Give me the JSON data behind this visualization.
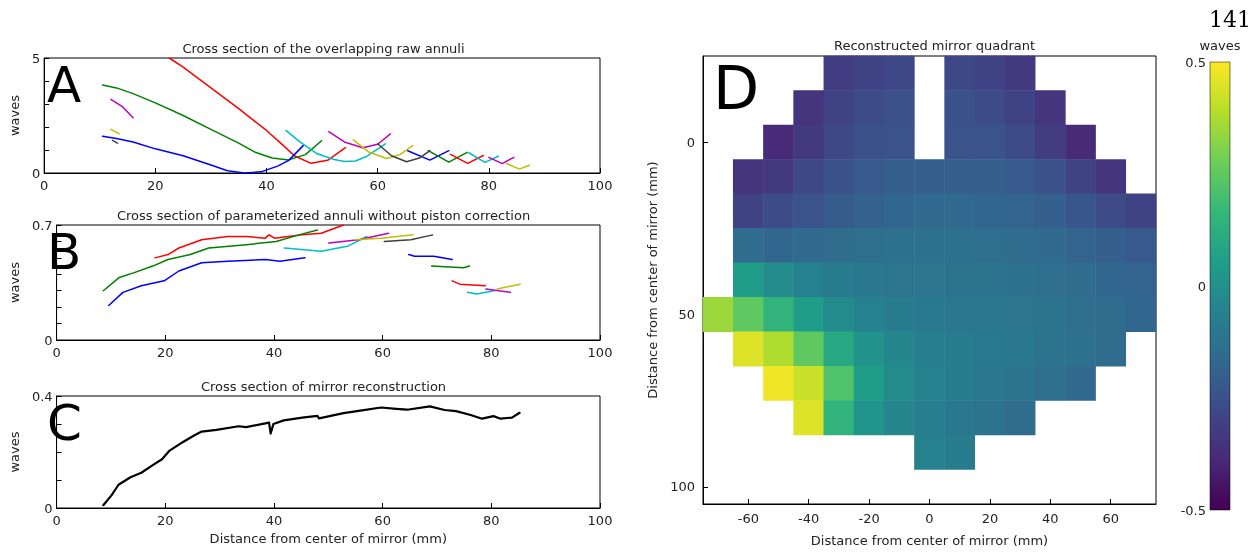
{
  "chart_data": [
    {
      "type": "line",
      "title": "Cross section of the overlapping raw annuli",
      "ylabel": "waves",
      "annotations": [
        "A"
      ],
      "marker": "none",
      "grid": false,
      "xlim": [
        0,
        100
      ],
      "xticks": [
        0,
        20,
        40,
        60,
        80,
        100
      ],
      "ylim": [
        0,
        5
      ],
      "yticks": [
        0,
        {
          "value": 1,
          "label": null
        },
        {
          "value": 2,
          "label": null
        },
        {
          "value": 3,
          "label": null
        },
        {
          "value": 4,
          "label": null
        },
        5
      ],
      "series": [
        {
          "color": "#ff0000",
          "x": [
            22.5,
            25,
            30,
            35,
            40,
            43,
            45,
            48,
            51,
            54.2
          ],
          "values": [
            5,
            4.6,
            3.7,
            2.8,
            1.85,
            1.2,
            0.75,
            0.42,
            0.55,
            1.1
          ]
        },
        {
          "color": "#008000",
          "x": [
            10.5,
            13,
            16,
            20,
            25,
            30,
            35,
            38,
            41,
            44,
            47,
            49.9
          ],
          "values": [
            3.83,
            3.7,
            3.45,
            3.05,
            2.5,
            1.9,
            1.3,
            0.9,
            0.65,
            0.57,
            0.8,
            1.4
          ]
        },
        {
          "color": "#0000ff",
          "x": [
            10.5,
            13,
            16,
            20,
            25,
            30,
            33,
            36,
            39,
            42,
            44,
            46.6
          ],
          "values": [
            1.6,
            1.5,
            1.35,
            1.05,
            0.75,
            0.35,
            0.1,
            0.0,
            0.05,
            0.3,
            0.55,
            1.19
          ]
        },
        {
          "color": "#bf00bf",
          "x": [
            12,
            14,
            16
          ],
          "values": [
            3.2,
            2.9,
            2.4
          ]
        },
        {
          "color": "#bfbf00",
          "x": [
            12,
            13.5
          ],
          "values": [
            1.9,
            1.7
          ]
        },
        {
          "color": "#00bfbf",
          "x": [
            43.5,
            46,
            49,
            52,
            54,
            56,
            58,
            61.4
          ],
          "values": [
            1.85,
            1.35,
            0.85,
            0.6,
            0.5,
            0.52,
            0.72,
            1.27
          ]
        },
        {
          "color": "#bf00bf",
          "x": [
            51.2,
            54,
            57.3,
            60,
            62.3
          ],
          "values": [
            1.8,
            1.35,
            1.1,
            1.25,
            1.7
          ]
        },
        {
          "color": "#bfbf00",
          "x": [
            55.6,
            58.5,
            61.6,
            64,
            66.3
          ],
          "values": [
            1.44,
            0.9,
            0.63,
            0.8,
            1.19
          ]
        },
        {
          "color": "#0000ff",
          "x": [
            65.4,
            69.4,
            72.8
          ],
          "values": [
            0.97,
            0.56,
            0.97
          ]
        },
        {
          "color": "#008000",
          "x": [
            69.1,
            72.8,
            76.1
          ],
          "values": [
            0.97,
            0.47,
            0.9
          ]
        },
        {
          "color": "#ff0000",
          "x": [
            73.1,
            76.2,
            79
          ],
          "values": [
            0.81,
            0.42,
            0.76
          ]
        },
        {
          "color": "#00bfbf",
          "x": [
            76.4,
            79.3,
            81.7
          ],
          "values": [
            0.88,
            0.46,
            0.73
          ]
        },
        {
          "color": "#bf00bf",
          "x": [
            80,
            82.4,
            84.5
          ],
          "values": [
            0.68,
            0.41,
            0.68
          ]
        },
        {
          "color": "#bfbf00",
          "x": [
            83.1,
            85.5,
            87.3
          ],
          "values": [
            0.42,
            0.17,
            0.34
          ]
        },
        {
          "color": "#404040",
          "x": [
            12.3,
            13.2
          ],
          "values": [
            1.42,
            1.3
          ]
        },
        {
          "color": "#404040",
          "x": [
            60,
            62.5,
            65.2,
            67.5,
            69.4
          ],
          "values": [
            1.27,
            0.75,
            0.49,
            0.65,
            0.97
          ]
        }
      ]
    },
    {
      "type": "line",
      "title": "Cross section of parameterized annuli without piston correction",
      "ylabel": "waves",
      "annotations": [
        "B"
      ],
      "marker": "none",
      "grid": false,
      "xlim": [
        0,
        100
      ],
      "xticks": [
        0,
        20,
        40,
        60,
        80,
        100
      ],
      "ylim": [
        0,
        0.7
      ],
      "yticks": [
        0,
        {
          "value": 0.1,
          "label": null
        },
        {
          "value": 0.2,
          "label": null
        },
        {
          "value": 0.3,
          "label": null
        },
        {
          "value": 0.4,
          "label": null
        },
        {
          "value": 0.5,
          "label": null
        },
        {
          "value": 0.6,
          "label": null
        },
        0.7
      ],
      "series": [
        {
          "color": "#ff0000",
          "x": [
            18.1,
            20.5,
            22.5,
            26.7,
            31.5,
            34.9,
            38.4,
            39.1,
            40.1,
            45.2,
            48.7,
            52.8
          ],
          "values": [
            0.5,
            0.52,
            0.56,
            0.61,
            0.63,
            0.63,
            0.62,
            0.64,
            0.62,
            0.64,
            0.65,
            0.7
          ]
        },
        {
          "color": "#008000",
          "x": [
            8.6,
            11.5,
            14.3,
            17.7,
            20.5,
            24.6,
            28,
            34.9,
            40.4,
            44.6,
            48
          ],
          "values": [
            0.3,
            0.38,
            0.41,
            0.45,
            0.49,
            0.52,
            0.56,
            0.58,
            0.6,
            0.64,
            0.67
          ]
        },
        {
          "color": "#0000ff",
          "x": [
            9.6,
            12.2,
            15.6,
            19.8,
            22.5,
            26.7,
            31.5,
            38.4,
            41.1,
            45.7
          ],
          "values": [
            0.21,
            0.29,
            0.33,
            0.36,
            0.42,
            0.47,
            0.48,
            0.49,
            0.48,
            0.5
          ]
        },
        {
          "color": "#00bfbf",
          "x": [
            41.9,
            48.7,
            53.5,
            57.1
          ],
          "values": [
            0.56,
            0.54,
            0.57,
            0.63
          ]
        },
        {
          "color": "#bf00bf",
          "x": [
            50.1,
            55.6,
            61.1
          ],
          "values": [
            0.59,
            0.61,
            0.65
          ]
        },
        {
          "color": "#bfbf00",
          "x": [
            54.9,
            59.7,
            65.6
          ],
          "values": [
            0.61,
            0.62,
            0.64
          ]
        },
        {
          "color": "#404040",
          "x": [
            60.3,
            65.2,
            69.2
          ],
          "values": [
            0.6,
            0.61,
            0.64
          ]
        },
        {
          "color": "#0000ff",
          "x": [
            64.8,
            65.9,
            69.4,
            72.8
          ],
          "values": [
            0.52,
            0.51,
            0.51,
            0.49
          ]
        },
        {
          "color": "#008000",
          "x": [
            69,
            74.9,
            76
          ],
          "values": [
            0.45,
            0.44,
            0.45
          ]
        },
        {
          "color": "#ff0000",
          "x": [
            72.8,
            74.2,
            78.9
          ],
          "values": [
            0.36,
            0.34,
            0.33
          ]
        },
        {
          "color": "#00bfbf",
          "x": [
            75.6,
            77.3,
            80.5
          ],
          "values": [
            0.29,
            0.28,
            0.3
          ]
        },
        {
          "color": "#bf00bf",
          "x": [
            79,
            83.5
          ],
          "values": [
            0.31,
            0.29
          ]
        },
        {
          "color": "#bfbf00",
          "x": [
            81.1,
            85.3
          ],
          "values": [
            0.31,
            0.34
          ]
        }
      ]
    },
    {
      "type": "line",
      "title": "Cross section of mirror reconstruction",
      "xlabel": "Distance from center of mirror (mm)",
      "ylabel": "waves",
      "annotations": [
        "C"
      ],
      "marker": "none",
      "grid": false,
      "xlim": [
        0,
        100
      ],
      "xticks": [
        0,
        20,
        40,
        60,
        80,
        100
      ],
      "ylim": [
        0,
        0.4
      ],
      "yticks": [
        0,
        {
          "value": 0.1,
          "label": null
        },
        {
          "value": 0.2,
          "label": null
        },
        {
          "value": 0.3,
          "label": null
        },
        0.4
      ],
      "series": [
        {
          "color": "#000000",
          "x": [
            8.6,
            10.1,
            11.4,
            13.6,
            15.6,
            17.7,
            19.4,
            20.8,
            23.2,
            25.3,
            26.7,
            29.4,
            33.5,
            34.9,
            38.4,
            39.1,
            39.4,
            39.9,
            41.8,
            45.2,
            48,
            48.3,
            52.8,
            55.6,
            59.7,
            62.5,
            64.5,
            68.7,
            71.4,
            73.5,
            76.2,
            78.3,
            80.4,
            81.7,
            83.8,
            85.2
          ],
          "values": [
            0.01,
            0.045,
            0.083,
            0.11,
            0.126,
            0.153,
            0.174,
            0.205,
            0.235,
            0.259,
            0.273,
            0.279,
            0.292,
            0.289,
            0.302,
            0.305,
            0.266,
            0.3,
            0.313,
            0.323,
            0.329,
            0.32,
            0.339,
            0.347,
            0.359,
            0.354,
            0.351,
            0.363,
            0.35,
            0.346,
            0.332,
            0.319,
            0.328,
            0.319,
            0.323,
            0.34
          ]
        }
      ]
    },
    {
      "type": "heatmap",
      "title": "Reconstructed mirror quadrant",
      "xlabel": "Distance from center of mirror (mm)",
      "ylabel": "Distance from center of mirror (mm)",
      "clabel": "waves",
      "annotations": [
        "D",
        "141"
      ],
      "categories": [
        null,
        "-60",
        null,
        "-40",
        null,
        "-20",
        null,
        "0",
        null,
        "20",
        null,
        "40",
        null,
        "60",
        null
      ],
      "y_categories": [
        null,
        null,
        "0",
        null,
        null,
        null,
        null,
        "50",
        null,
        null,
        null,
        null,
        "100"
      ],
      "clim": [
        -0.5,
        0.5
      ],
      "cticks": [
        -0.5,
        0,
        0.5
      ],
      "cells": [
        [
          null,
          null,
          null,
          null,
          -0.32,
          -0.3,
          -0.28,
          null,
          -0.28,
          -0.3,
          -0.33,
          null,
          null,
          null,
          null
        ],
        [
          null,
          null,
          null,
          -0.35,
          -0.3,
          -0.27,
          -0.25,
          null,
          -0.25,
          -0.27,
          -0.3,
          -0.35,
          null,
          null,
          null
        ],
        [
          null,
          null,
          -0.38,
          -0.33,
          -0.28,
          -0.25,
          -0.24,
          null,
          -0.24,
          -0.24,
          -0.27,
          -0.32,
          -0.38,
          null,
          null
        ],
        [
          null,
          -0.35,
          -0.33,
          -0.28,
          -0.25,
          -0.22,
          -0.2,
          -0.2,
          -0.2,
          -0.2,
          -0.22,
          -0.25,
          -0.3,
          -0.35,
          null
        ],
        [
          null,
          -0.3,
          -0.27,
          -0.24,
          -0.21,
          -0.19,
          -0.17,
          -0.16,
          -0.16,
          -0.17,
          -0.18,
          -0.2,
          -0.23,
          -0.27,
          -0.3
        ],
        [
          null,
          -0.15,
          -0.17,
          -0.16,
          -0.15,
          -0.14,
          -0.13,
          -0.13,
          -0.13,
          -0.14,
          -0.15,
          -0.16,
          -0.18,
          -0.2,
          -0.22
        ],
        [
          null,
          0.05,
          -0.02,
          -0.06,
          -0.08,
          -0.1,
          -0.11,
          -0.11,
          -0.12,
          -0.12,
          -0.13,
          -0.14,
          -0.15,
          -0.17,
          -0.18
        ],
        [
          0.35,
          0.25,
          0.15,
          0.05,
          -0.02,
          -0.06,
          -0.08,
          -0.09,
          -0.1,
          -0.1,
          -0.11,
          -0.12,
          -0.14,
          -0.15,
          -0.17
        ],
        [
          null,
          0.45,
          0.38,
          0.25,
          0.1,
          0.01,
          -0.04,
          -0.07,
          -0.08,
          -0.09,
          -0.1,
          -0.12,
          -0.13,
          -0.15,
          null
        ],
        [
          null,
          null,
          0.48,
          0.42,
          0.22,
          0.05,
          -0.02,
          -0.06,
          -0.08,
          -0.1,
          -0.12,
          -0.14,
          -0.16,
          null,
          null
        ],
        [
          null,
          null,
          null,
          0.45,
          0.15,
          0.02,
          -0.04,
          -0.07,
          -0.1,
          -0.12,
          -0.15,
          null,
          null,
          null,
          null
        ],
        [
          null,
          null,
          null,
          null,
          null,
          null,
          null,
          -0.06,
          -0.08,
          null,
          null,
          null,
          null,
          null,
          null
        ],
        [
          null,
          null,
          null,
          null,
          null,
          null,
          null,
          null,
          null,
          null,
          null,
          null,
          null,
          null,
          null
        ]
      ]
    }
  ]
}
